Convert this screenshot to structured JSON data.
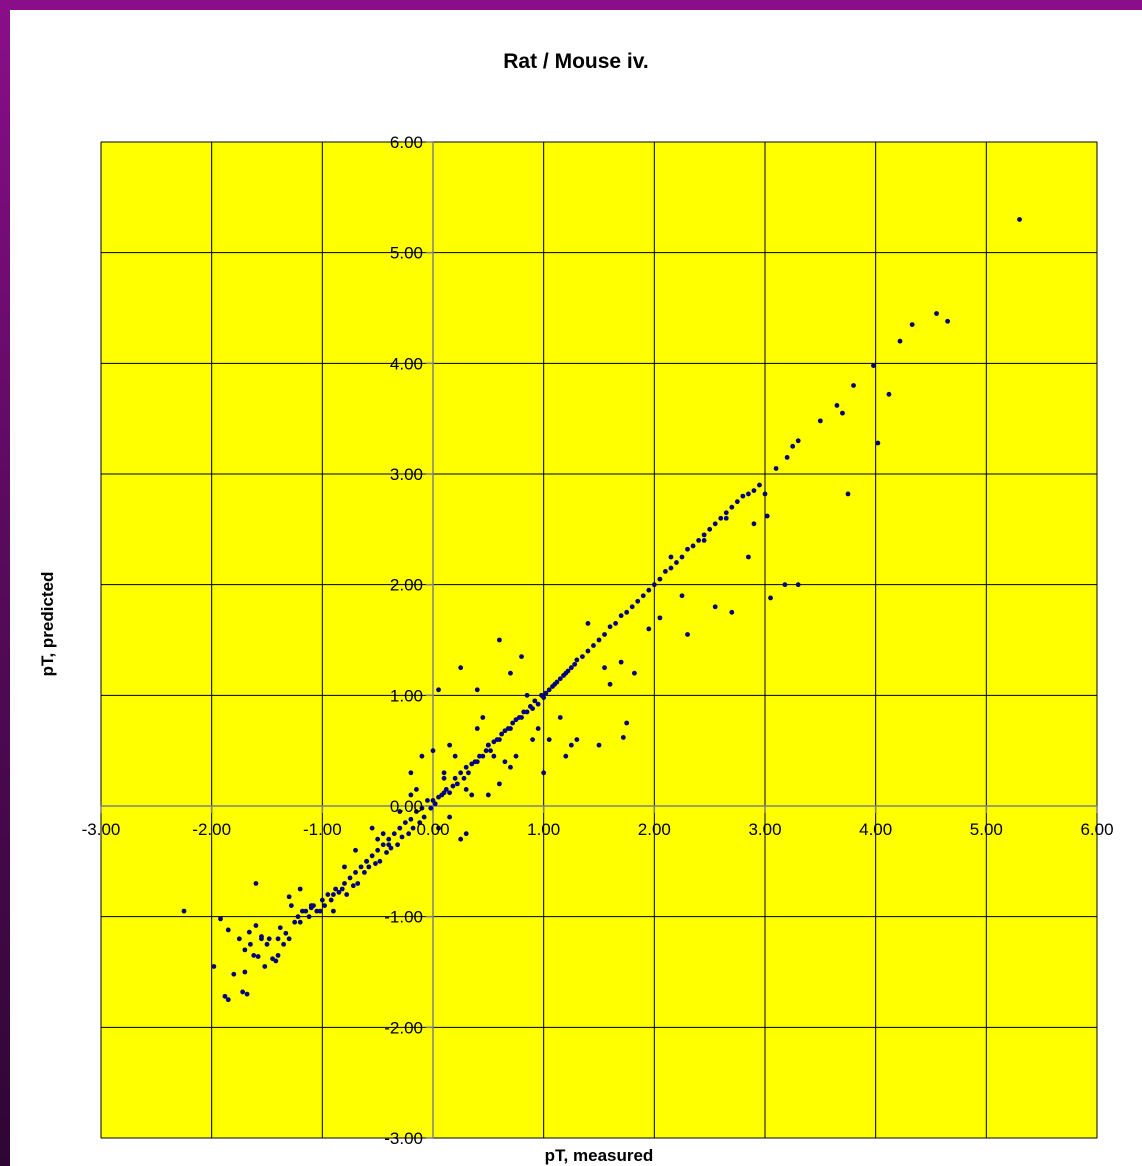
{
  "chart_data": {
    "type": "scatter",
    "title": "Rat / Mouse iv.",
    "xlabel": "pT, measured",
    "ylabel": "pT, predicted",
    "xlim": [
      -3,
      6
    ],
    "ylim": [
      -3,
      6
    ],
    "x_ticks": [
      "-3.00",
      "-2.00",
      "-1.00",
      "0.00",
      "1.00",
      "2.00",
      "3.00",
      "4.00",
      "5.00",
      "6.00"
    ],
    "y_ticks": [
      "-3.00",
      "-2.00",
      "-1.00",
      "0.00",
      "1.00",
      "2.00",
      "3.00",
      "4.00",
      "5.00",
      "6.00"
    ],
    "grid": true,
    "plot_background": "#ffff00",
    "marker_color": "#000080",
    "series": [
      {
        "x": [
          -2.25,
          -1.98,
          -1.92,
          -1.88,
          -1.85,
          -1.8,
          -1.75,
          -1.72,
          -1.7,
          -1.68,
          -1.66,
          -1.65,
          -1.62,
          -1.6,
          -1.58,
          -1.55,
          -1.52,
          -1.5,
          -1.48,
          -1.45,
          -1.42,
          -1.4,
          -1.38,
          -1.35,
          -1.33,
          -1.3,
          -1.28,
          -1.25,
          -1.22,
          -1.2,
          -1.18,
          -1.15,
          -1.12,
          -1.1,
          -1.08,
          -1.05,
          -1.02,
          -1.0,
          -0.98,
          -0.95,
          -0.92,
          -0.9,
          -0.88,
          -0.85,
          -0.82,
          -0.8,
          -0.78,
          -0.75,
          -0.72,
          -0.7,
          -0.68,
          -0.65,
          -0.62,
          -0.6,
          -0.58,
          -0.55,
          -0.52,
          -0.5,
          -0.48,
          -0.45,
          -0.42,
          -0.4,
          -0.38,
          -0.35,
          -0.32,
          -0.3,
          -0.28,
          -0.25,
          -0.22,
          -0.2,
          -0.18,
          -0.15,
          -0.12,
          -0.1,
          -0.08,
          -0.05,
          -0.02,
          0.0,
          0.02,
          0.05,
          0.08,
          0.1,
          0.12,
          0.15,
          0.18,
          0.2,
          0.22,
          0.25,
          0.28,
          0.3,
          0.32,
          0.35,
          0.38,
          0.4,
          0.42,
          0.45,
          0.48,
          0.5,
          0.52,
          0.55,
          0.58,
          0.6,
          0.62,
          0.65,
          0.68,
          0.7,
          0.72,
          0.75,
          0.78,
          0.8,
          0.82,
          0.85,
          0.88,
          0.9,
          0.92,
          0.95,
          0.98,
          1.0,
          1.02,
          1.05,
          1.08,
          1.1,
          1.12,
          1.15,
          1.18,
          1.2,
          1.22,
          1.25,
          1.28,
          1.3,
          1.35,
          1.4,
          1.45,
          1.5,
          1.55,
          1.6,
          1.65,
          1.7,
          1.75,
          1.8,
          1.85,
          1.9,
          1.95,
          2.0,
          2.05,
          2.1,
          2.15,
          2.2,
          2.25,
          2.3,
          2.35,
          2.4,
          2.45,
          2.5,
          2.55,
          2.6,
          2.65,
          2.7,
          2.75,
          2.8,
          2.85,
          2.9,
          2.95,
          3.0,
          3.1,
          3.2,
          3.25,
          3.3,
          3.5,
          3.65,
          3.7,
          3.8,
          3.98,
          4.12,
          4.22,
          4.33,
          4.55,
          4.65,
          5.3,
          -1.85,
          -1.7,
          -1.55,
          -1.4,
          -1.3,
          -1.1,
          -0.9,
          -0.7,
          -0.55,
          -0.4,
          -0.2,
          0.05,
          0.15,
          0.25,
          0.35,
          0.45,
          0.6,
          0.75,
          0.95,
          1.25,
          1.55,
          1.75,
          1.95,
          2.15,
          2.25,
          2.55,
          2.7,
          2.9,
          3.05,
          3.3,
          3.75,
          4.02,
          -1.6,
          -1.2,
          -0.8,
          -0.5,
          -0.2,
          0.0,
          0.1,
          0.2,
          0.3,
          0.4,
          0.5,
          0.6,
          0.65,
          0.7,
          0.85,
          1.05,
          1.15,
          1.4,
          1.6,
          1.72,
          1.82,
          2.05,
          2.3,
          2.45,
          2.65,
          2.85,
          3.02,
          3.18,
          -0.6,
          -0.3,
          0.05,
          0.25,
          0.55,
          0.8,
          1.0,
          1.2,
          1.5,
          1.7,
          0.3,
          0.5,
          -0.1,
          0.15,
          0.9,
          1.3,
          -0.45,
          -0.15,
          0.1,
          0.4,
          0.7
        ],
        "y": [
          -0.95,
          -1.45,
          -1.02,
          -1.72,
          -1.12,
          -1.52,
          -1.2,
          -1.68,
          -1.3,
          -1.7,
          -1.14,
          -1.25,
          -1.35,
          -1.08,
          -1.36,
          -1.18,
          -1.45,
          -1.25,
          -1.2,
          -1.38,
          -1.4,
          -1.2,
          -1.1,
          -1.25,
          -1.15,
          -1.2,
          -0.9,
          -1.05,
          -1.0,
          -1.05,
          -0.95,
          -0.95,
          -1.0,
          -0.92,
          -0.9,
          -0.95,
          -0.95,
          -0.85,
          -0.9,
          -0.8,
          -0.85,
          -0.8,
          -0.75,
          -0.78,
          -0.75,
          -0.7,
          -0.8,
          -0.65,
          -0.72,
          -0.6,
          -0.7,
          -0.55,
          -0.6,
          -0.5,
          -0.55,
          -0.45,
          -0.52,
          -0.4,
          -0.5,
          -0.35,
          -0.42,
          -0.3,
          -0.38,
          -0.25,
          -0.35,
          -0.2,
          -0.28,
          -0.15,
          -0.25,
          -0.12,
          -0.2,
          -0.05,
          -0.15,
          -0.02,
          -0.1,
          0.05,
          -0.02,
          0.05,
          0.02,
          0.08,
          0.1,
          0.12,
          0.15,
          0.12,
          0.18,
          0.25,
          0.2,
          0.3,
          0.25,
          0.35,
          0.3,
          0.38,
          0.4,
          0.4,
          0.45,
          0.45,
          0.5,
          0.55,
          0.5,
          0.58,
          0.6,
          0.6,
          0.65,
          0.68,
          0.7,
          0.7,
          0.75,
          0.78,
          0.8,
          0.8,
          0.85,
          0.85,
          0.9,
          0.88,
          0.95,
          0.92,
          1.0,
          0.98,
          1.02,
          1.05,
          1.08,
          1.1,
          1.12,
          1.15,
          1.18,
          1.2,
          1.22,
          1.25,
          1.28,
          1.32,
          1.35,
          1.4,
          1.45,
          1.5,
          1.55,
          1.62,
          1.65,
          1.72,
          1.75,
          1.8,
          1.85,
          1.9,
          1.95,
          2.0,
          2.05,
          2.12,
          2.15,
          2.2,
          2.25,
          2.32,
          2.35,
          2.4,
          2.45,
          2.5,
          2.55,
          2.6,
          2.65,
          2.7,
          2.75,
          2.8,
          2.82,
          2.85,
          2.9,
          2.82,
          3.05,
          3.15,
          3.25,
          3.3,
          3.48,
          3.62,
          3.55,
          3.8,
          3.98,
          3.72,
          4.2,
          4.35,
          4.45,
          4.38,
          5.3,
          -1.75,
          -1.5,
          -1.2,
          -1.35,
          -0.82,
          -0.9,
          -0.95,
          -0.4,
          -0.2,
          -0.35,
          0.1,
          -0.2,
          0.55,
          -0.3,
          0.1,
          0.8,
          0.2,
          0.45,
          0.7,
          0.55,
          1.25,
          0.75,
          1.6,
          2.25,
          1.9,
          1.8,
          1.75,
          2.55,
          1.88,
          2.0,
          2.82,
          3.28,
          -0.7,
          -0.75,
          -0.55,
          -0.3,
          0.3,
          0.5,
          0.3,
          0.45,
          0.15,
          0.7,
          0.1,
          1.5,
          0.4,
          0.35,
          1.0,
          0.6,
          0.8,
          1.65,
          1.1,
          0.62,
          1.2,
          1.7,
          1.55,
          2.4,
          2.6,
          2.25,
          2.62,
          2.0,
          -0.5,
          -0.05,
          1.05,
          1.25,
          0.45,
          1.35,
          0.3,
          0.45,
          0.55,
          1.3,
          -0.25,
          0.55,
          0.45,
          -0.1,
          0.6,
          0.6,
          -0.25,
          0.15,
          0.25,
          1.05,
          1.2
        ]
      }
    ]
  }
}
